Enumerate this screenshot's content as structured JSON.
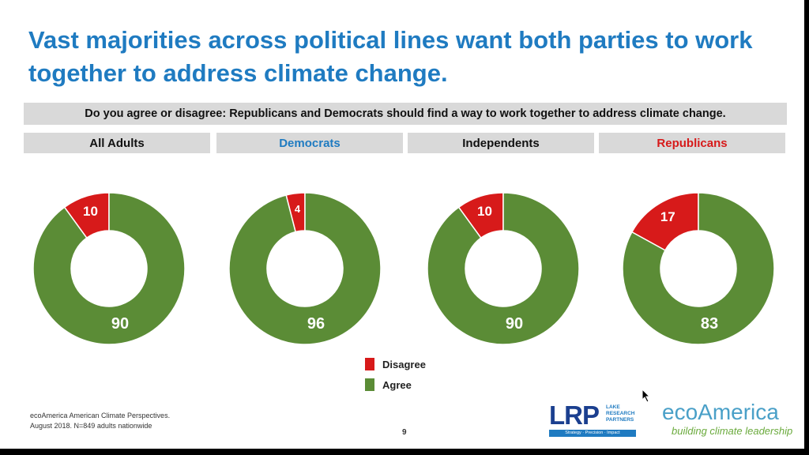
{
  "title": "Vast majorities across political lines want both parties to work together to address climate change.",
  "question": "Do you agree or disagree: Republicans and Democrats should find a way to work together to address climate change.",
  "colors": {
    "title": "#1f7bc1",
    "disagree": "#d71a1a",
    "agree": "#5b8c36",
    "democrats_header": "#1f7bc1",
    "republicans_header": "#d71a1a",
    "header_default": "#111111"
  },
  "groups": [
    {
      "label": "All Adults",
      "color_key": "header_default"
    },
    {
      "label": "Democrats",
      "color_key": "democrats_header"
    },
    {
      "label": "Independents",
      "color_key": "header_default"
    },
    {
      "label": "Republicans",
      "color_key": "republicans_header"
    }
  ],
  "chart_data": {
    "type": "pie",
    "variant": "donut",
    "title": "",
    "categories": [
      "All Adults",
      "Democrats",
      "Independents",
      "Republicans"
    ],
    "series": [
      {
        "name": "Disagree",
        "values": [
          10,
          4,
          10,
          17
        ]
      },
      {
        "name": "Agree",
        "values": [
          90,
          96,
          90,
          83
        ]
      }
    ],
    "legend_position": "bottom-center"
  },
  "legend": [
    {
      "label": "Disagree",
      "color_key": "disagree"
    },
    {
      "label": "Agree",
      "color_key": "agree"
    }
  ],
  "footnote": {
    "line1": "ecoAmerica American Climate Perspectives.",
    "line2": "August 2018. N=849 adults nationwide"
  },
  "page_number": "9",
  "logos": {
    "lrp_letters": "LRP",
    "lrp_line1": "LAKE",
    "lrp_line2": "RESEARCH",
    "lrp_line3": "PARTNERS",
    "lrp_strip": "Strategy · Precision · Impact",
    "eco_name": "ecoAmerica",
    "eco_tagline": "building climate leadership"
  }
}
